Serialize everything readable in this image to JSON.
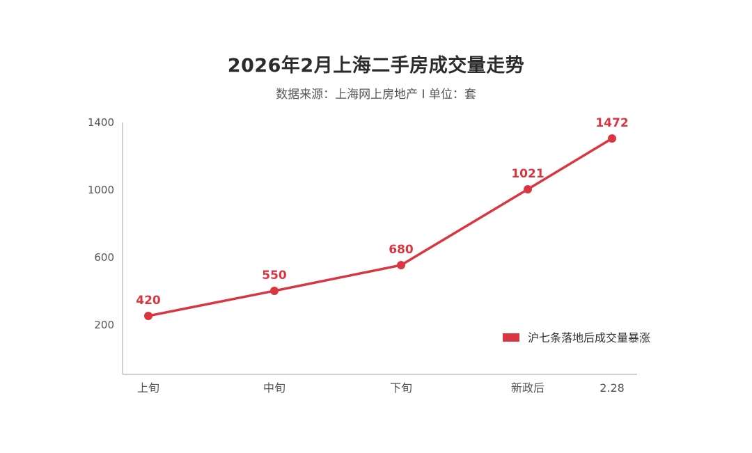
{
  "chart_data": {
    "type": "line",
    "title": "2026年2月上海二手房成交量走势",
    "subtitle": "数据来源：上海网上房地产 I 单位：套",
    "categories": [
      "上旬",
      "中旬",
      "下旬",
      "新政后",
      "2.28"
    ],
    "series": [
      {
        "name": "沪七条落地后成交量暴涨",
        "values": [
          420,
          550,
          680,
          1021,
          1472
        ]
      }
    ],
    "y_ticks": [
      1400,
      1000,
      600,
      200
    ],
    "ylim": [
      0,
      1570
    ],
    "grid": false,
    "legend_position": "bottom-right",
    "line_color": "#d93641"
  }
}
